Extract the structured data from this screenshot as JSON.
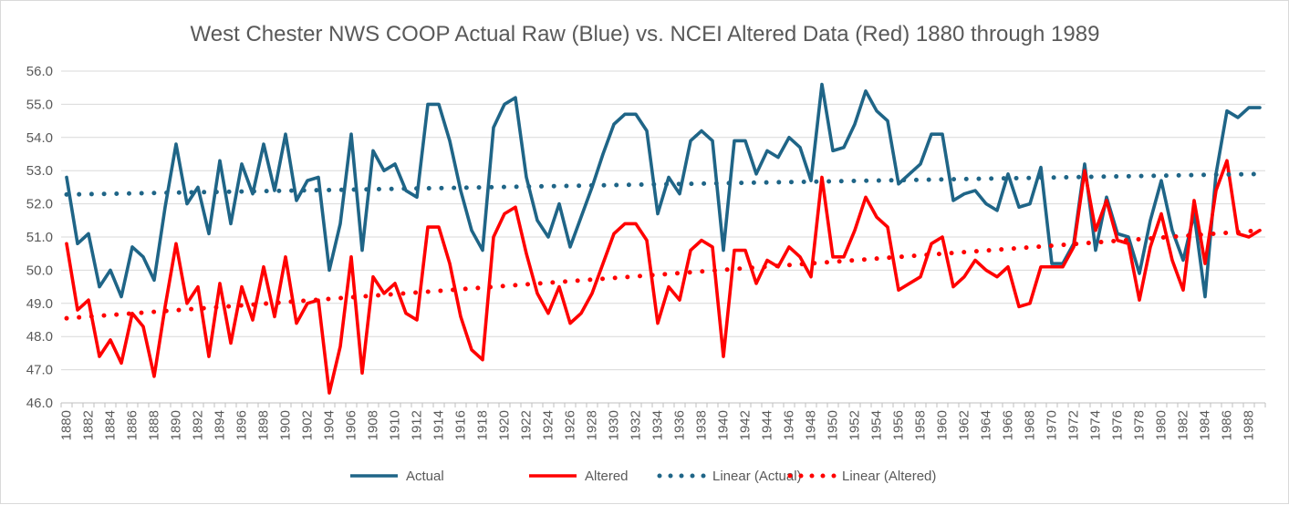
{
  "chart_data": {
    "type": "line",
    "title": "West Chester NWS COOP  Actual Raw (Blue) vs. NCEI Altered Data (Red) 1880 through 1989",
    "xlabel": "",
    "ylabel": "",
    "ylim": [
      46.0,
      56.0
    ],
    "y_ticks": [
      "46.0",
      "47.0",
      "48.0",
      "49.0",
      "50.0",
      "51.0",
      "52.0",
      "53.0",
      "54.0",
      "55.0",
      "56.0"
    ],
    "grid": "horizontal",
    "legend_position": "bottom",
    "x_tick_labels": [
      "1880",
      "1882",
      "1884",
      "1886",
      "1888",
      "1890",
      "1892",
      "1894",
      "1896",
      "1898",
      "1900",
      "1902",
      "1904",
      "1906",
      "1908",
      "1910",
      "1912",
      "1914",
      "1916",
      "1918",
      "1920",
      "1922",
      "1924",
      "1926",
      "1928",
      "1930",
      "1932",
      "1934",
      "1936",
      "1938",
      "1940",
      "1942",
      "1944",
      "1946",
      "1948",
      "1950",
      "1952",
      "1954",
      "1956",
      "1958",
      "1960",
      "1962",
      "1964",
      "1966",
      "1968",
      "1970",
      "1972",
      "1974",
      "1976",
      "1978",
      "1980",
      "1982",
      "1984",
      "1986",
      "1988"
    ],
    "x": [
      1880,
      1881,
      1882,
      1883,
      1884,
      1885,
      1886,
      1887,
      1888,
      1889,
      1890,
      1891,
      1892,
      1893,
      1894,
      1895,
      1896,
      1897,
      1898,
      1899,
      1900,
      1901,
      1902,
      1903,
      1904,
      1905,
      1906,
      1907,
      1908,
      1909,
      1910,
      1911,
      1912,
      1913,
      1914,
      1915,
      1916,
      1917,
      1918,
      1919,
      1920,
      1921,
      1922,
      1923,
      1924,
      1925,
      1926,
      1927,
      1928,
      1929,
      1930,
      1931,
      1932,
      1933,
      1934,
      1935,
      1936,
      1937,
      1938,
      1939,
      1940,
      1941,
      1942,
      1943,
      1944,
      1945,
      1946,
      1947,
      1948,
      1949,
      1950,
      1951,
      1952,
      1953,
      1954,
      1955,
      1956,
      1957,
      1958,
      1959,
      1960,
      1961,
      1962,
      1963,
      1964,
      1965,
      1966,
      1967,
      1968,
      1969,
      1970,
      1971,
      1972,
      1973,
      1974,
      1975,
      1976,
      1977,
      1978,
      1979,
      1980,
      1981,
      1982,
      1983,
      1984,
      1985,
      1986,
      1987,
      1988,
      1989
    ],
    "series": [
      {
        "name": "Actual",
        "color": "#1f6587",
        "style": "solid",
        "values": [
          52.8,
          50.8,
          51.1,
          49.5,
          50.0,
          49.2,
          50.7,
          50.4,
          49.7,
          51.9,
          53.8,
          52.0,
          52.5,
          51.1,
          53.3,
          51.4,
          53.2,
          52.3,
          53.8,
          52.4,
          54.1,
          52.1,
          52.7,
          52.8,
          50.0,
          51.4,
          54.1,
          50.6,
          53.6,
          53.0,
          53.2,
          52.4,
          52.2,
          55.0,
          55.0,
          53.9,
          52.4,
          51.2,
          50.6,
          54.3,
          55.0,
          55.2,
          52.8,
          51.5,
          51.0,
          52.0,
          50.7,
          51.6,
          52.5,
          53.5,
          54.4,
          54.7,
          54.7,
          54.2,
          51.7,
          52.8,
          52.3,
          53.9,
          54.2,
          53.9,
          50.6,
          53.9,
          53.9,
          52.9,
          53.6,
          53.4,
          54.0,
          53.7,
          52.7,
          55.6,
          53.6,
          53.7,
          54.4,
          55.4,
          54.8,
          54.5,
          52.6,
          52.9,
          53.2,
          54.1,
          54.1,
          52.1,
          52.3,
          52.4,
          52.0,
          51.8,
          52.9,
          51.9,
          52.0,
          53.1,
          50.2,
          50.2,
          50.8,
          53.2,
          50.6,
          52.2,
          51.1,
          51.0,
          49.9,
          51.5,
          52.7,
          51.2,
          50.3,
          51.7,
          49.2,
          52.9,
          54.8,
          54.6,
          54.9,
          54.9
        ]
      },
      {
        "name": "Altered",
        "color": "#ff0000",
        "style": "solid",
        "values": [
          50.8,
          48.8,
          49.1,
          47.4,
          47.9,
          47.2,
          48.7,
          48.3,
          46.8,
          48.9,
          50.8,
          49.0,
          49.5,
          47.4,
          49.6,
          47.8,
          49.5,
          48.5,
          50.1,
          48.6,
          50.4,
          48.4,
          49.0,
          49.1,
          46.3,
          47.7,
          50.4,
          46.9,
          49.8,
          49.3,
          49.6,
          48.7,
          48.5,
          51.3,
          51.3,
          50.2,
          48.6,
          47.6,
          47.3,
          51.0,
          51.7,
          51.9,
          50.5,
          49.3,
          48.7,
          49.5,
          48.4,
          48.7,
          49.3,
          50.2,
          51.1,
          51.4,
          51.4,
          50.9,
          48.4,
          49.5,
          49.1,
          50.6,
          50.9,
          50.7,
          47.4,
          50.6,
          50.6,
          49.6,
          50.3,
          50.1,
          50.7,
          50.4,
          49.8,
          52.8,
          50.4,
          50.4,
          51.2,
          52.2,
          51.6,
          51.3,
          49.4,
          49.6,
          49.8,
          50.8,
          51.0,
          49.5,
          49.8,
          50.3,
          50.0,
          49.8,
          50.1,
          48.9,
          49.0,
          50.1,
          50.1,
          50.1,
          50.7,
          53.0,
          51.2,
          52.1,
          50.9,
          50.8,
          49.1,
          50.7,
          51.7,
          50.3,
          49.4,
          52.1,
          50.2,
          52.4,
          53.3,
          51.1,
          51.0,
          51.2
        ]
      },
      {
        "name": "Linear (Actual)",
        "color": "#1f6587",
        "style": "dotted",
        "values_start_end": [
          52.28,
          52.9
        ]
      },
      {
        "name": "Linear (Altered)",
        "color": "#ff0000",
        "style": "dotted",
        "values_start_end": [
          48.55,
          51.2
        ]
      }
    ]
  },
  "legend": {
    "items": [
      "Actual",
      "Altered",
      "Linear (Actual)",
      "Linear (Altered)"
    ]
  }
}
